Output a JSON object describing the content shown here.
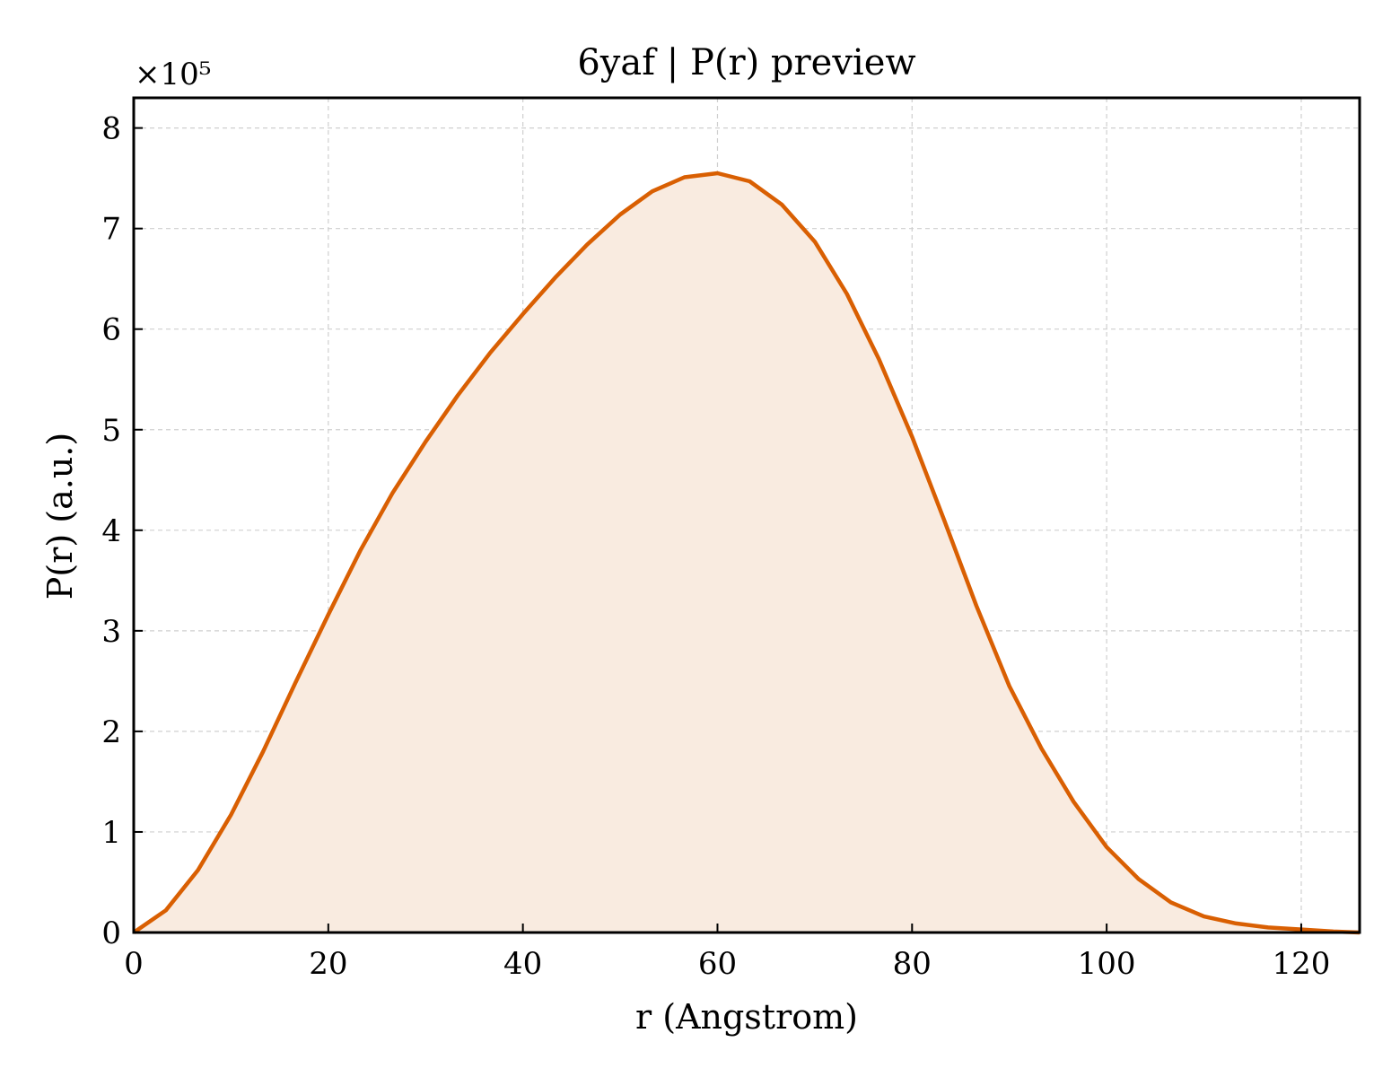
{
  "chart_data": {
    "type": "area",
    "title": "6yaf | P(r) preview",
    "xlabel": "r (Angstrom)",
    "ylabel": "P(r) (a.u.)",
    "y_scale_label": "×10⁵",
    "y_scale_factor": 100000,
    "xlim": [
      0,
      126
    ],
    "ylim": [
      0,
      8.3
    ],
    "xticks": [
      0,
      20,
      40,
      60,
      80,
      100,
      120
    ],
    "yticks": [
      0,
      1,
      2,
      3,
      4,
      5,
      6,
      7,
      8
    ],
    "grid": true,
    "line_color": "#d95f02",
    "fill_color": "#f9ebe0",
    "x": [
      0,
      3.3,
      6.6,
      10.0,
      13.3,
      16.6,
      20.0,
      23.3,
      26.6,
      30.0,
      33.3,
      36.6,
      40.0,
      43.3,
      46.6,
      50.0,
      53.3,
      56.6,
      60.0,
      63.3,
      66.6,
      70.0,
      73.3,
      76.6,
      80.0,
      83.3,
      86.6,
      90.0,
      93.3,
      96.6,
      100.0,
      103.3,
      106.6,
      110.0,
      113.3,
      116.6,
      120.0,
      123.3,
      126.0
    ],
    "y": [
      0,
      0.22,
      0.62,
      1.17,
      1.8,
      2.48,
      3.16,
      3.8,
      4.37,
      4.88,
      5.34,
      5.76,
      6.15,
      6.51,
      6.84,
      7.14,
      7.37,
      7.51,
      7.55,
      7.47,
      7.24,
      6.87,
      6.35,
      5.7,
      4.93,
      4.1,
      3.25,
      2.45,
      1.83,
      1.3,
      0.85,
      0.53,
      0.3,
      0.16,
      0.09,
      0.05,
      0.03,
      0.01,
      0.0
    ]
  }
}
